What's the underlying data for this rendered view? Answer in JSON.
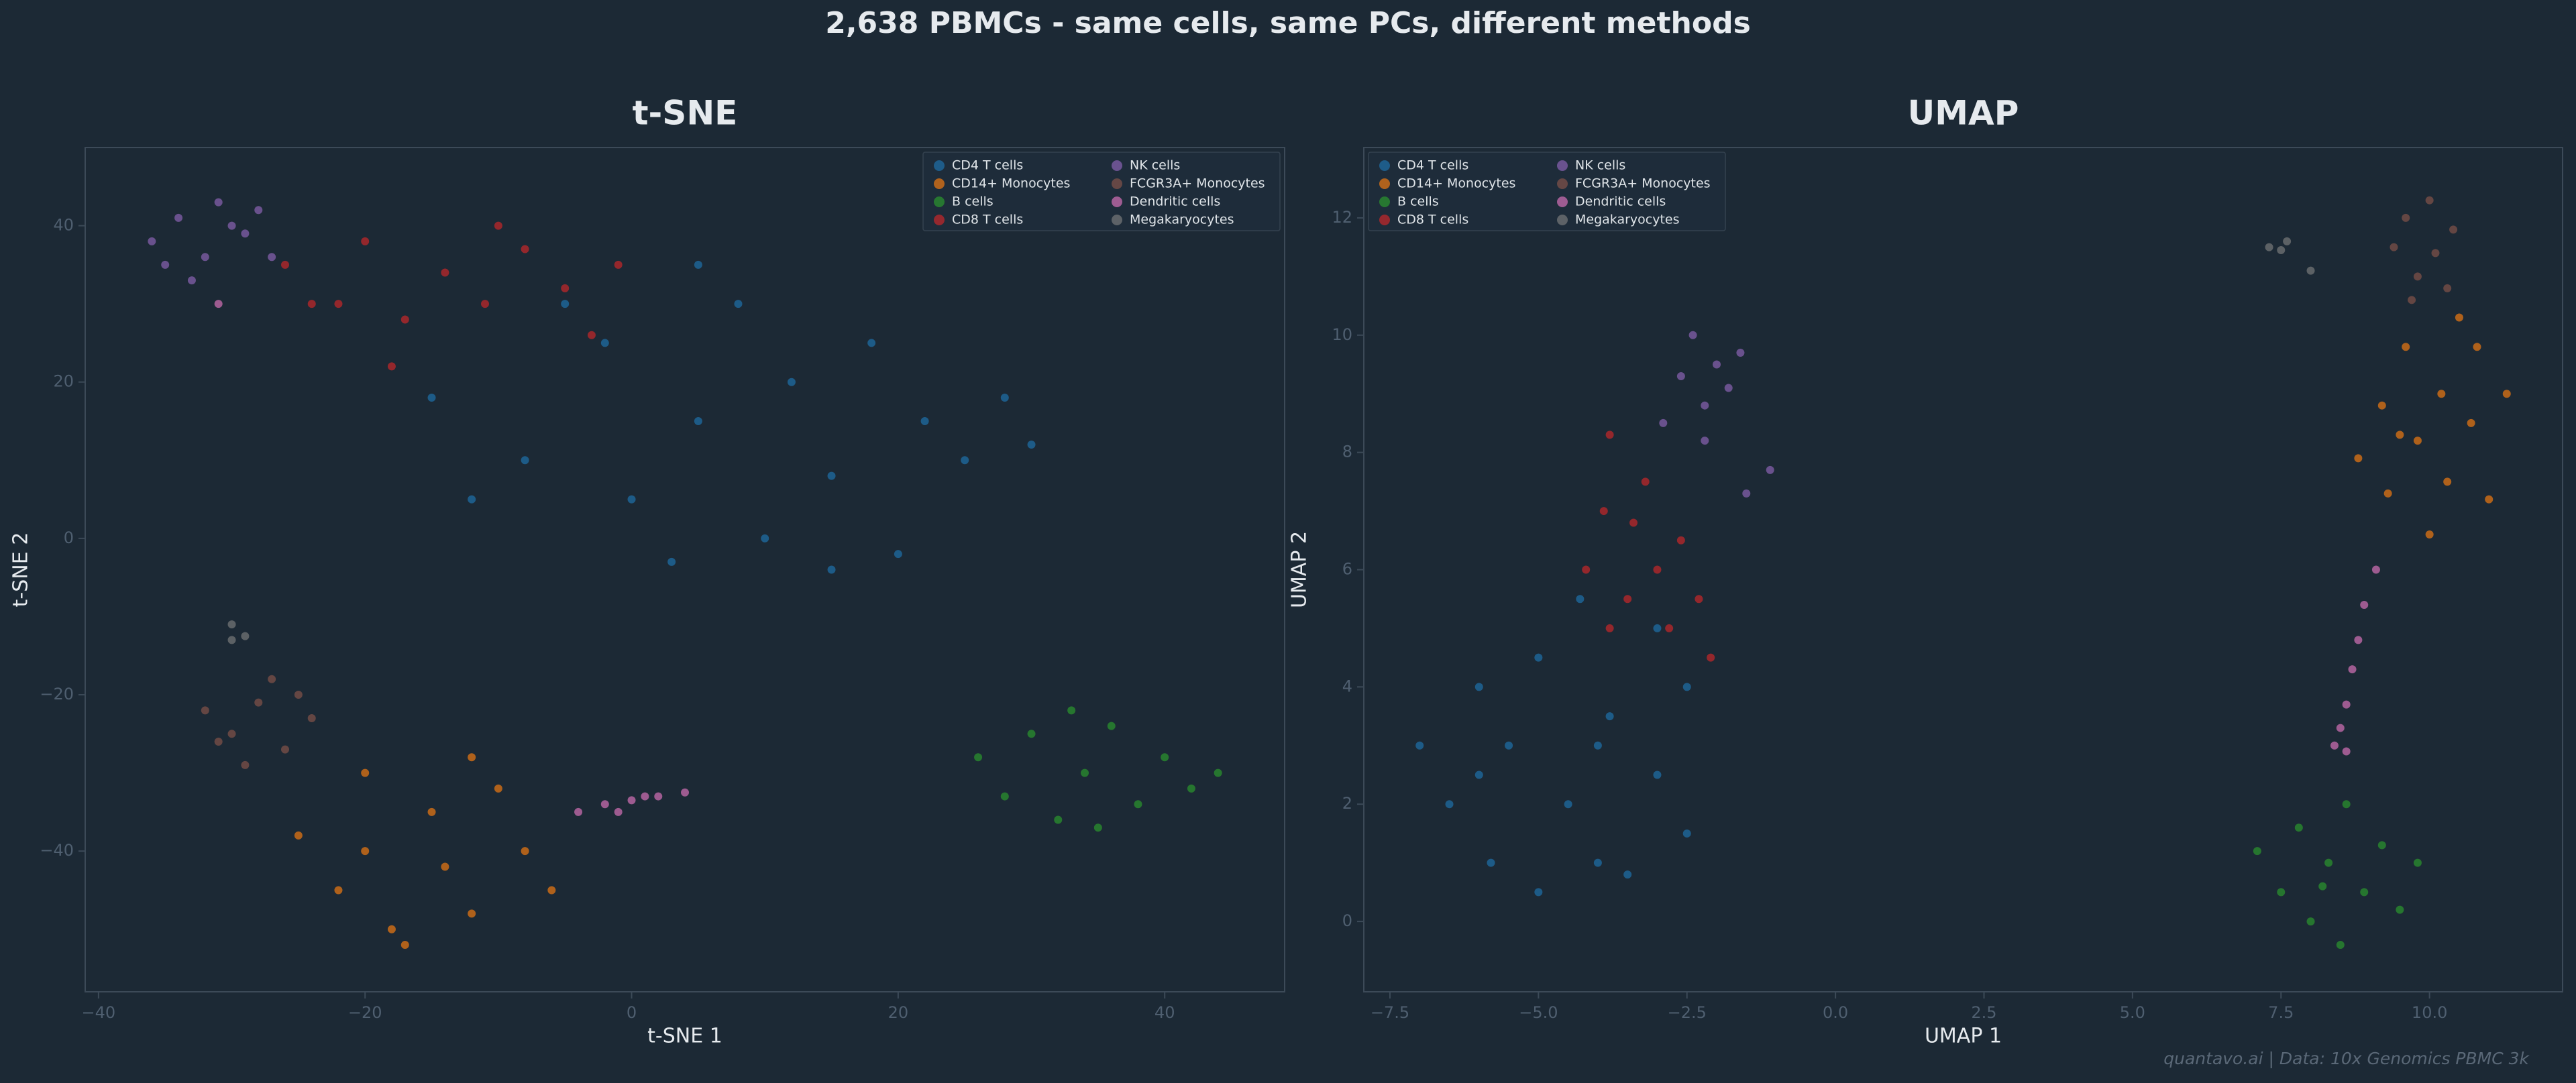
{
  "title": "2,638 PBMCs - same cells, same PCs, different methods",
  "footer": "quantavo.ai  |  Data: 10x Genomics PBMC 3k",
  "chart_data": [
    {
      "type": "scatter",
      "title": "t-SNE",
      "xlabel": "t-SNE 1",
      "ylabel": "t-SNE 2",
      "legend": "upper right",
      "grid": false,
      "xlim": [
        -41,
        49
      ],
      "ylim": [
        -58,
        50
      ],
      "xticks": [
        {
          "value": -40,
          "label": "−40"
        },
        {
          "value": -20,
          "label": "−20"
        },
        0,
        20,
        40
      ],
      "yticks": [
        {
          "value": -40,
          "label": "−40"
        },
        {
          "value": -20,
          "label": "−20"
        },
        0,
        20,
        40
      ],
      "series": [
        {
          "name": "CD4 T cells",
          "color": "#1f77b4",
          "x": [
            -15,
            -8,
            -2,
            0,
            5,
            8,
            10,
            12,
            15,
            18,
            20,
            22,
            25,
            28,
            3,
            -12,
            30,
            5,
            15,
            -5
          ],
          "y": [
            18,
            10,
            25,
            5,
            15,
            30,
            0,
            20,
            8,
            25,
            -2,
            15,
            10,
            18,
            -3,
            5,
            12,
            35,
            -4,
            30
          ]
        },
        {
          "name": "CD14+ Monocytes",
          "color": "#ff7f0e",
          "x": [
            -25,
            -22,
            -20,
            -18,
            -15,
            -14,
            -12,
            -10,
            -8,
            -6,
            -17,
            -20,
            -12
          ],
          "y": [
            -38,
            -45,
            -30,
            -50,
            -35,
            -42,
            -48,
            -32,
            -40,
            -45,
            -52,
            -40,
            -28
          ]
        },
        {
          "name": "B cells",
          "color": "#2ca02c",
          "x": [
            26,
            28,
            30,
            32,
            34,
            36,
            38,
            40,
            42,
            44,
            35,
            33
          ],
          "y": [
            -28,
            -33,
            -25,
            -36,
            -30,
            -24,
            -34,
            -28,
            -32,
            -30,
            -37,
            -22
          ]
        },
        {
          "name": "CD8 T cells",
          "color": "#d62728",
          "x": [
            -26,
            -22,
            -20,
            -17,
            -14,
            -11,
            -8,
            -5,
            -3,
            -18,
            -24,
            -10,
            -1
          ],
          "y": [
            35,
            30,
            38,
            28,
            34,
            30,
            37,
            32,
            26,
            22,
            30,
            40,
            35
          ]
        },
        {
          "name": "NK cells",
          "color": "#9467bd",
          "x": [
            -36,
            -34,
            -32,
            -31,
            -29,
            -27,
            -33,
            -30,
            -35,
            -28
          ],
          "y": [
            38,
            41,
            36,
            43,
            39,
            36,
            33,
            40,
            35,
            42
          ]
        },
        {
          "name": "FCGR3A+ Monocytes",
          "color": "#8c564b",
          "x": [
            -32,
            -30,
            -28,
            -26,
            -24,
            -29,
            -27,
            -31,
            -25
          ],
          "y": [
            -22,
            -25,
            -21,
            -27,
            -23,
            -29,
            -18,
            -26,
            -20
          ]
        },
        {
          "name": "Dendritic cells",
          "color": "#e377c2",
          "x": [
            -4,
            -2,
            0,
            2,
            4,
            -1,
            1,
            -31
          ],
          "y": [
            -35,
            -34,
            -33.5,
            -33,
            -32.5,
            -35,
            -33,
            30
          ]
        },
        {
          "name": "Megakaryocytes",
          "color": "#7f7f7f",
          "x": [
            -30,
            -29,
            -30
          ],
          "y": [
            -11,
            -12.5,
            -13
          ]
        }
      ]
    },
    {
      "type": "scatter",
      "title": "UMAP",
      "xlabel": "UMAP 1",
      "ylabel": "UMAP 2",
      "legend": "upper left",
      "grid": false,
      "xlim": [
        -7.94,
        12.24
      ],
      "ylim": [
        -1.2,
        13.2
      ],
      "xticks": [
        {
          "value": -7.5,
          "label": "−7.5"
        },
        {
          "value": -5,
          "label": "−5.0"
        },
        {
          "value": -2.5,
          "label": "−2.5"
        },
        {
          "value": 0,
          "label": "0.0"
        },
        2.5,
        {
          "value": 5,
          "label": "5.0"
        },
        7.5,
        {
          "value": 10,
          "label": "10.0"
        }
      ],
      "yticks": [
        0,
        2,
        4,
        6,
        8,
        10,
        12
      ],
      "series": [
        {
          "name": "CD4 T cells",
          "color": "#1f77b4",
          "x": [
            -7,
            -6.5,
            -6,
            -5.8,
            -5.5,
            -5,
            -5,
            -4.5,
            -4.3,
            -4,
            -3.8,
            -3.5,
            -3,
            -2.5,
            -2.5,
            -4,
            -6,
            -3
          ],
          "y": [
            3,
            2,
            4,
            1,
            3,
            0.5,
            4.5,
            2,
            5.5,
            1,
            3.5,
            0.8,
            2.5,
            4,
            1.5,
            3,
            2.5,
            5
          ]
        },
        {
          "name": "CD14+ Monocytes",
          "color": "#ff7f0e",
          "x": [
            8.8,
            9.2,
            9.3,
            9.6,
            9.8,
            10,
            10.2,
            10.3,
            10.5,
            10.7,
            11,
            11.3,
            9.5,
            10.8
          ],
          "y": [
            7.9,
            8.8,
            7.3,
            9.8,
            8.2,
            6.6,
            9,
            7.5,
            10.3,
            8.5,
            7.2,
            9,
            8.3,
            9.8
          ]
        },
        {
          "name": "B cells",
          "color": "#2ca02c",
          "x": [
            7.1,
            7.5,
            7.8,
            8,
            8.3,
            8.5,
            8.6,
            8.9,
            9.2,
            9.5,
            9.8,
            8.2
          ],
          "y": [
            1.2,
            0.5,
            1.6,
            0,
            1,
            -0.4,
            2,
            0.5,
            1.3,
            0.2,
            1,
            0.6
          ]
        },
        {
          "name": "CD8 T cells",
          "color": "#d62728",
          "x": [
            -4.2,
            -3.9,
            -3.8,
            -3.5,
            -3.4,
            -3.2,
            -3,
            -2.8,
            -2.6,
            -2.3,
            -2.1,
            -3.8
          ],
          "y": [
            6,
            7,
            8.3,
            5.5,
            6.8,
            7.5,
            6,
            5,
            6.5,
            5.5,
            4.5,
            5
          ]
        },
        {
          "name": "NK cells",
          "color": "#9467bd",
          "x": [
            -2.9,
            -2.6,
            -2.4,
            -2.2,
            -2,
            -1.8,
            -1.6,
            -2.2,
            -1.1,
            -1.5
          ],
          "y": [
            8.5,
            9.3,
            10,
            8.8,
            9.5,
            9.1,
            9.7,
            8.2,
            7.7,
            7.3
          ]
        },
        {
          "name": "FCGR3A+ Monocytes",
          "color": "#8c564b",
          "x": [
            9.4,
            9.6,
            9.8,
            10,
            10.1,
            10.3,
            9.7,
            10.4
          ],
          "y": [
            11.5,
            12,
            11,
            12.3,
            11.4,
            10.8,
            10.6,
            11.8
          ]
        },
        {
          "name": "Dendritic cells",
          "color": "#e377c2",
          "x": [
            9.1,
            8.9,
            8.8,
            8.7,
            8.6,
            8.5,
            8.6,
            8.4
          ],
          "y": [
            6,
            5.4,
            4.8,
            4.3,
            3.7,
            3.3,
            2.9,
            3
          ]
        },
        {
          "name": "Megakaryocytes",
          "color": "#7f7f7f",
          "x": [
            7.3,
            7.5,
            7.6,
            8
          ],
          "y": [
            11.5,
            11.45,
            11.6,
            11.1
          ]
        }
      ]
    }
  ]
}
